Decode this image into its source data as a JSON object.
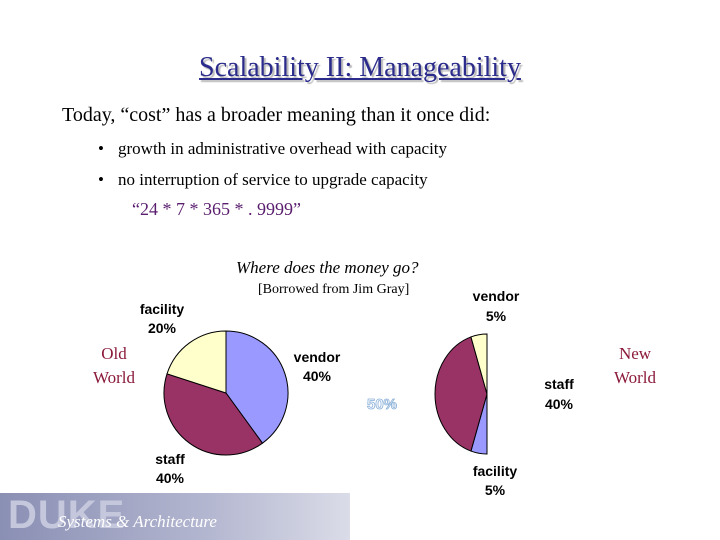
{
  "slide": {
    "title": "Scalability II: Manageability",
    "intro": "Today, “cost” has a broader meaning than it once did:",
    "bullets": [
      "growth in administrative overhead with capacity",
      "no interruption of service to upgrade capacity"
    ],
    "bullet_glyph": "•",
    "formula": "“24 * 7 * 365 * . 9999”",
    "question": "Where does the money go?",
    "credit": "[Borrowed from Jim Gray]",
    "old_world": "Old World",
    "new_world": "New World",
    "ghost_percent": "50%",
    "footer": {
      "logo_text": "DUKE",
      "subtitle": "Systems & Architecture"
    }
  },
  "colors": {
    "vendor": "#9999ff",
    "staff": "#993366",
    "facility": "#ffffcc",
    "title": "#2b2b8c",
    "world_label": "#8b1a3a"
  },
  "chart_data": [
    {
      "type": "pie",
      "name": "Old World",
      "slices": [
        {
          "label": "vendor",
          "value": 40,
          "pct_text": "40%"
        },
        {
          "label": "staff",
          "value": 40,
          "pct_text": "40%"
        },
        {
          "label": "facility",
          "value": 20,
          "pct_text": "20%"
        }
      ]
    },
    {
      "type": "pie",
      "name": "New World",
      "slices": [
        {
          "label": "vendor",
          "value": 5,
          "pct_text": "5%"
        },
        {
          "label": "staff",
          "value": 40,
          "pct_text": "40%"
        },
        {
          "label": "facility",
          "value": 5,
          "pct_text": "5%"
        }
      ]
    }
  ]
}
